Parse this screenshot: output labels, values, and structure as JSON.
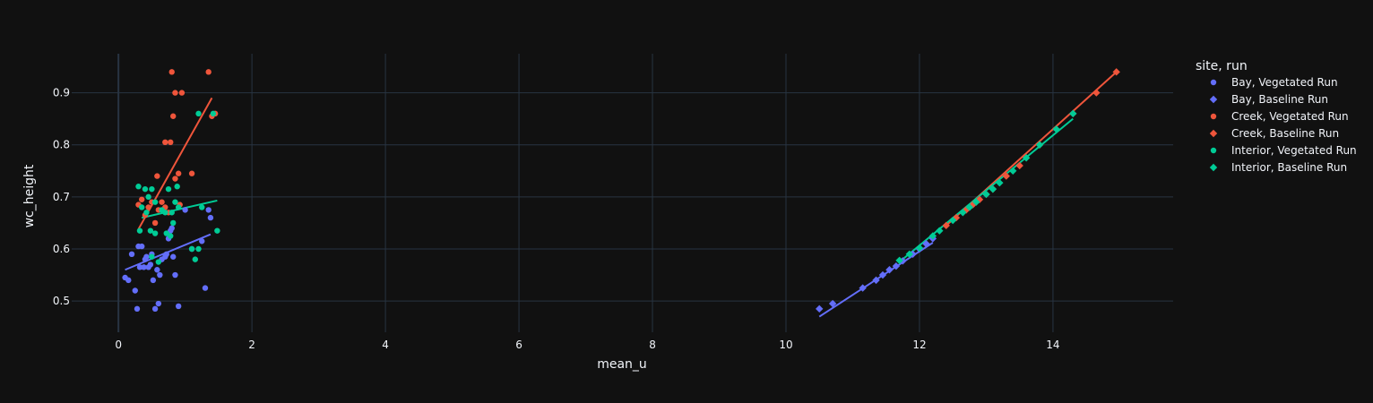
{
  "chart_data": {
    "type": "scatter",
    "xlabel": "mean_u",
    "ylabel": "wc_height",
    "xlim": [
      -0.7,
      15.8
    ],
    "ylim": [
      0.44,
      0.975
    ],
    "x_ticks": [
      0,
      2,
      4,
      6,
      8,
      10,
      12,
      14
    ],
    "y_ticks": [
      0.5,
      0.6,
      0.7,
      0.8,
      0.9
    ],
    "grid": true,
    "legend_title": "site, run",
    "legend_position": "right",
    "series": [
      {
        "name": "Bay, Vegetated Run",
        "color": "#636efa",
        "marker": "circle",
        "points": [
          [
            0.1,
            0.545
          ],
          [
            0.15,
            0.54
          ],
          [
            0.2,
            0.59
          ],
          [
            0.25,
            0.52
          ],
          [
            0.28,
            0.485
          ],
          [
            0.3,
            0.605
          ],
          [
            0.32,
            0.565
          ],
          [
            0.35,
            0.605
          ],
          [
            0.38,
            0.565
          ],
          [
            0.4,
            0.58
          ],
          [
            0.42,
            0.585
          ],
          [
            0.45,
            0.565
          ],
          [
            0.48,
            0.57
          ],
          [
            0.5,
            0.59
          ],
          [
            0.52,
            0.54
          ],
          [
            0.55,
            0.485
          ],
          [
            0.58,
            0.56
          ],
          [
            0.6,
            0.495
          ],
          [
            0.62,
            0.55
          ],
          [
            0.65,
            0.58
          ],
          [
            0.7,
            0.585
          ],
          [
            0.72,
            0.59
          ],
          [
            0.75,
            0.62
          ],
          [
            0.78,
            0.635
          ],
          [
            0.8,
            0.64
          ],
          [
            0.82,
            0.585
          ],
          [
            0.85,
            0.55
          ],
          [
            0.9,
            0.49
          ],
          [
            1.0,
            0.675
          ],
          [
            1.1,
            0.6
          ],
          [
            1.25,
            0.615
          ],
          [
            1.3,
            0.525
          ],
          [
            1.35,
            0.675
          ],
          [
            1.38,
            0.66
          ]
        ],
        "trend": [
          [
            0.1,
            0.56
          ],
          [
            1.38,
            0.628
          ]
        ]
      },
      {
        "name": "Bay, Baseline Run",
        "color": "#636efa",
        "marker": "diamond",
        "points": [
          [
            10.5,
            0.485
          ],
          [
            10.7,
            0.495
          ],
          [
            11.15,
            0.525
          ],
          [
            11.35,
            0.54
          ],
          [
            11.45,
            0.55
          ],
          [
            11.55,
            0.56
          ],
          [
            11.65,
            0.567
          ],
          [
            11.75,
            0.577
          ],
          [
            11.9,
            0.59
          ],
          [
            12.0,
            0.6
          ],
          [
            12.1,
            0.61
          ],
          [
            12.2,
            0.62
          ]
        ],
        "trend": [
          [
            10.5,
            0.47
          ],
          [
            12.2,
            0.612
          ]
        ]
      },
      {
        "name": "Creek, Vegetated Run",
        "color": "#ef553b",
        "marker": "circle",
        "points": [
          [
            0.3,
            0.685
          ],
          [
            0.35,
            0.695
          ],
          [
            0.4,
            0.665
          ],
          [
            0.45,
            0.68
          ],
          [
            0.5,
            0.69
          ],
          [
            0.55,
            0.65
          ],
          [
            0.58,
            0.74
          ],
          [
            0.6,
            0.675
          ],
          [
            0.65,
            0.69
          ],
          [
            0.7,
            0.68
          ],
          [
            0.7,
            0.805
          ],
          [
            0.75,
            0.67
          ],
          [
            0.78,
            0.805
          ],
          [
            0.8,
            0.94
          ],
          [
            0.82,
            0.855
          ],
          [
            0.85,
            0.9
          ],
          [
            0.85,
            0.735
          ],
          [
            0.9,
            0.745
          ],
          [
            0.92,
            0.685
          ],
          [
            0.95,
            0.9
          ],
          [
            1.1,
            0.745
          ],
          [
            1.35,
            0.94
          ],
          [
            1.4,
            0.855
          ],
          [
            1.45,
            0.86
          ]
        ],
        "trend": [
          [
            0.3,
            0.638
          ],
          [
            1.4,
            0.89
          ]
        ]
      },
      {
        "name": "Creek, Baseline Run",
        "color": "#ef553b",
        "marker": "diamond",
        "points": [
          [
            12.4,
            0.645
          ],
          [
            12.55,
            0.66
          ],
          [
            12.7,
            0.675
          ],
          [
            12.8,
            0.685
          ],
          [
            12.9,
            0.695
          ],
          [
            13.0,
            0.705
          ],
          [
            13.1,
            0.715
          ],
          [
            13.3,
            0.74
          ],
          [
            13.5,
            0.76
          ],
          [
            13.8,
            0.8
          ],
          [
            14.3,
            0.86
          ],
          [
            14.65,
            0.9
          ],
          [
            14.95,
            0.94
          ]
        ],
        "trend": [
          [
            12.4,
            0.645
          ],
          [
            14.95,
            0.94
          ]
        ]
      },
      {
        "name": "Interior, Vegetated Run",
        "color": "#00cc96",
        "marker": "circle",
        "points": [
          [
            0.3,
            0.72
          ],
          [
            0.32,
            0.635
          ],
          [
            0.35,
            0.68
          ],
          [
            0.4,
            0.715
          ],
          [
            0.42,
            0.67
          ],
          [
            0.45,
            0.7
          ],
          [
            0.48,
            0.635
          ],
          [
            0.5,
            0.715
          ],
          [
            0.5,
            0.585
          ],
          [
            0.55,
            0.69
          ],
          [
            0.55,
            0.63
          ],
          [
            0.6,
            0.575
          ],
          [
            0.65,
            0.675
          ],
          [
            0.7,
            0.67
          ],
          [
            0.72,
            0.63
          ],
          [
            0.75,
            0.715
          ],
          [
            0.78,
            0.625
          ],
          [
            0.8,
            0.67
          ],
          [
            0.82,
            0.65
          ],
          [
            0.85,
            0.69
          ],
          [
            0.88,
            0.72
          ],
          [
            0.9,
            0.68
          ],
          [
            1.1,
            0.6
          ],
          [
            1.15,
            0.58
          ],
          [
            1.2,
            0.6
          ],
          [
            1.2,
            0.86
          ],
          [
            1.25,
            0.68
          ],
          [
            1.42,
            0.86
          ],
          [
            1.48,
            0.635
          ]
        ],
        "trend": [
          [
            0.35,
            0.66
          ],
          [
            1.48,
            0.693
          ]
        ]
      },
      {
        "name": "Interior, Baseline Run",
        "color": "#00cc96",
        "marker": "diamond",
        "points": [
          [
            11.7,
            0.578
          ],
          [
            11.85,
            0.59
          ],
          [
            12.0,
            0.602
          ],
          [
            12.2,
            0.625
          ],
          [
            12.3,
            0.635
          ],
          [
            12.5,
            0.655
          ],
          [
            12.65,
            0.67
          ],
          [
            12.75,
            0.68
          ],
          [
            12.85,
            0.69
          ],
          [
            13.0,
            0.705
          ],
          [
            13.1,
            0.715
          ],
          [
            13.2,
            0.727
          ],
          [
            13.4,
            0.75
          ],
          [
            13.6,
            0.775
          ],
          [
            13.8,
            0.8
          ],
          [
            14.05,
            0.83
          ],
          [
            14.3,
            0.86
          ]
        ],
        "trend": [
          [
            11.7,
            0.575
          ],
          [
            14.3,
            0.85
          ]
        ]
      }
    ]
  }
}
